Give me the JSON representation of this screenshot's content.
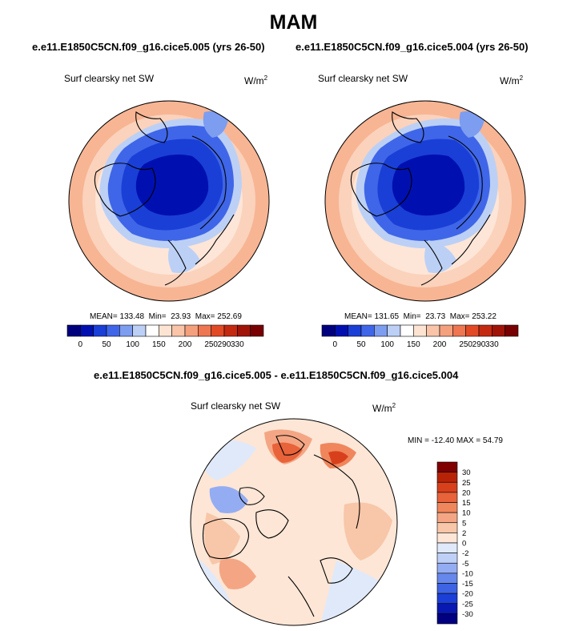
{
  "header": {
    "season": "MAM",
    "case_a": "e.e11.E1850C5CN.f09_g16.cice5.005 (yrs 26-50)",
    "case_b": "e.e11.E1850C5CN.f09_g16.cice5.004 (yrs 26-50)",
    "diff_title": "e.e11.E1850C5CN.f09_g16.cice5.005 - e.e11.E1850C5CN.f09_g16.cice5.004"
  },
  "panels": {
    "left": {
      "variable": "Surf clearsky net SW",
      "units": "W/m",
      "units_exp": "2",
      "mean_label": "MEAN=",
      "mean": "133.48",
      "min_label": "Min=",
      "min": "23.93",
      "max_label": "Max=",
      "max": "252.69"
    },
    "right": {
      "variable": "Surf clearsky net SW",
      "units": "W/m",
      "units_exp": "2",
      "mean_label": "MEAN=",
      "mean": "131.65",
      "min_label": "Min=",
      "min": "23.73",
      "max_label": "Max=",
      "max": "253.22"
    },
    "diff": {
      "variable": "Surf clearsky net SW",
      "units": "W/m",
      "units_exp": "2",
      "stats": "MIN = -12.40 MAX =  54.79"
    }
  },
  "colors": {
    "abs_scale": [
      "#00007f",
      "#0010b0",
      "#1a3fd6",
      "#3f66e8",
      "#7d9df0",
      "#bcd0f6",
      "#ffffff",
      "#fde4d2",
      "#f9c4a8",
      "#f4a07d",
      "#ee7650",
      "#e24a26",
      "#c42a10",
      "#a01408",
      "#780000"
    ],
    "diff_scale": [
      "#000080",
      "#0818b0",
      "#1c3fd8",
      "#3e64e4",
      "#6688ec",
      "#94adf2",
      "#bfd0f7",
      "#dfe9fa",
      "#fde6d6",
      "#f8c6a8",
      "#f4a684",
      "#f0865c",
      "#e8623a",
      "#d8401c",
      "#b82308",
      "#800000"
    ],
    "coast": "#000000"
  },
  "chart_data": [
    {
      "type": "heatmap",
      "title": "e.e11.E1850C5CN.f09_g16.cice5.005 (yrs 26-50)",
      "subtitle": "Surf clearsky net SW",
      "units": "W/m2",
      "projection": "north polar stereographic",
      "colorbar_ticks": [
        "0",
        "50",
        "100",
        "150",
        "200",
        "250",
        "290",
        "330"
      ],
      "colorbar_levels": [
        0,
        25,
        50,
        75,
        100,
        125,
        150,
        175,
        200,
        225,
        250,
        270,
        290,
        310,
        330
      ],
      "stats": {
        "mean": 133.48,
        "min": 23.93,
        "max": 252.69
      }
    },
    {
      "type": "heatmap",
      "title": "e.e11.E1850C5CN.f09_g16.cice5.004 (yrs 26-50)",
      "subtitle": "Surf clearsky net SW",
      "units": "W/m2",
      "projection": "north polar stereographic",
      "colorbar_ticks": [
        "0",
        "50",
        "100",
        "150",
        "200",
        "250",
        "290",
        "330"
      ],
      "colorbar_levels": [
        0,
        25,
        50,
        75,
        100,
        125,
        150,
        175,
        200,
        225,
        250,
        270,
        290,
        310,
        330
      ],
      "stats": {
        "mean": 131.65,
        "min": 23.73,
        "max": 253.22
      }
    },
    {
      "type": "heatmap",
      "title": "e.e11.E1850C5CN.f09_g16.cice5.005 - e.e11.E1850C5CN.f09_g16.cice5.004",
      "subtitle": "Surf clearsky net SW",
      "units": "W/m2",
      "projection": "north polar stereographic",
      "colorbar_ticks": [
        "30",
        "25",
        "20",
        "15",
        "10",
        "5",
        "2",
        "0",
        "-2",
        "-5",
        "-10",
        "-15",
        "-20",
        "-25",
        "-30"
      ],
      "stats": {
        "min": -12.4,
        "max": 54.79
      }
    }
  ]
}
